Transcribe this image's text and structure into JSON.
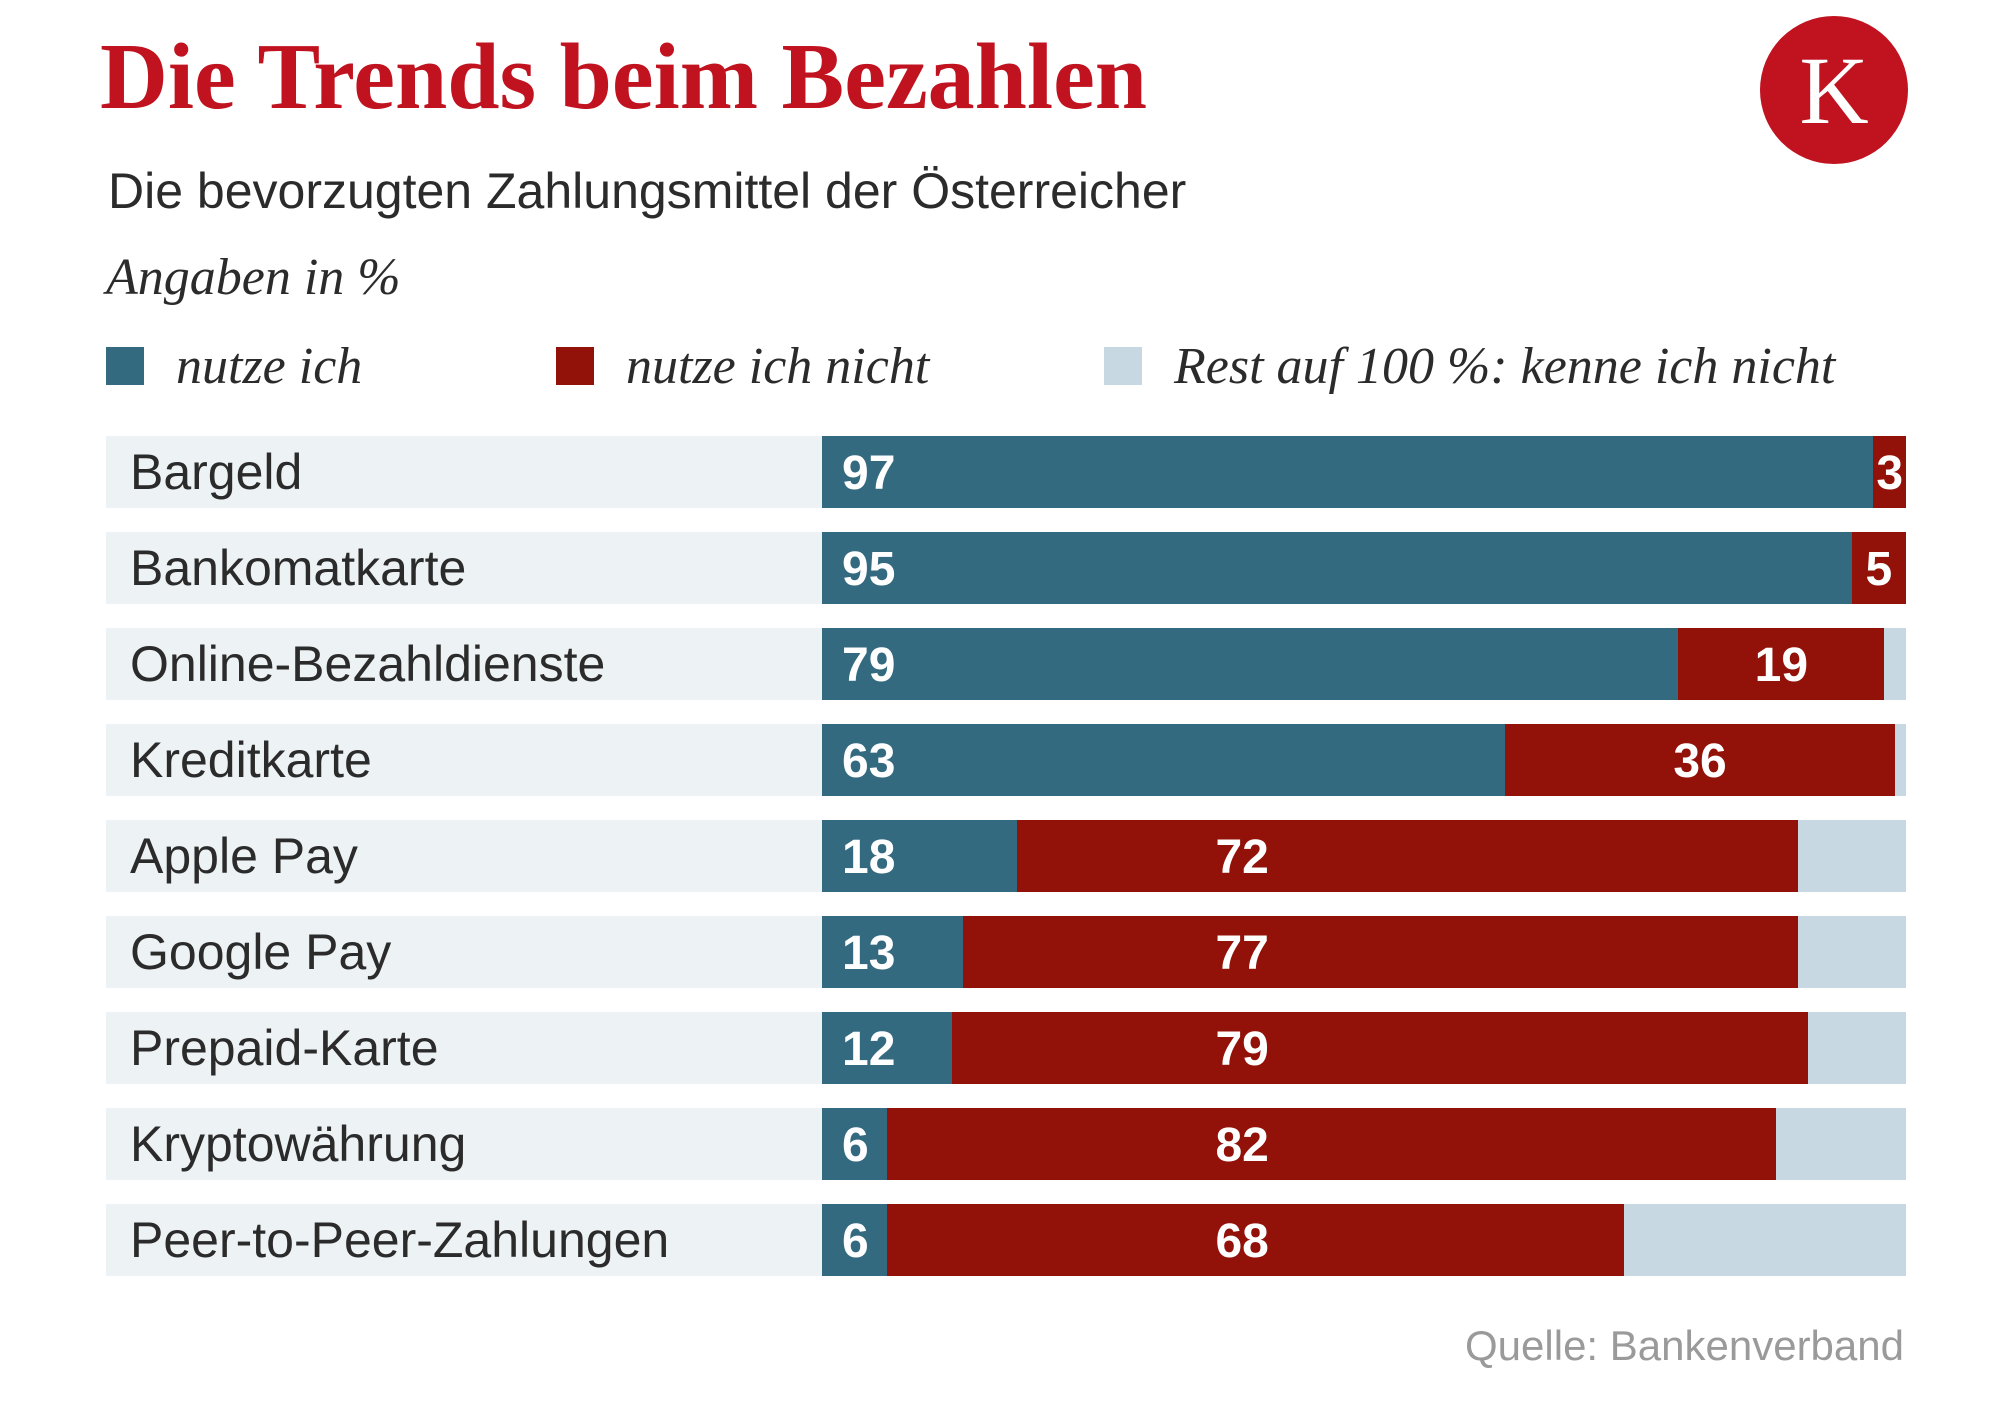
{
  "header": {
    "title": "Die Trends beim Bezahlen",
    "subtitle": "Die bevorzugten Zahlungsmittel der Österreicher",
    "unit": "Angaben in %",
    "logo_letter": "K"
  },
  "colors": {
    "use": "#336a80",
    "not_use": "#921108",
    "rest": "#c8d8e2",
    "row_bg": "#edf2f4",
    "title": "#c1121f"
  },
  "legend": [
    {
      "label": "nutze ich",
      "color": "#336a80"
    },
    {
      "label": "nutze ich nicht",
      "color": "#921108"
    },
    {
      "label": "Rest auf 100 %: kenne ich nicht",
      "color": "#c8d8e2"
    }
  ],
  "chart_data": {
    "type": "bar",
    "orientation": "horizontal",
    "stacked": true,
    "xlim": [
      0,
      100
    ],
    "categories": [
      "Bargeld",
      "Bankomatkarte",
      "Online-Bezahldienste",
      "Kreditkarte",
      "Apple Pay",
      "Google Pay",
      "Prepaid-Karte",
      "Kryptowährung",
      "Peer-to-Peer-Zahlungen"
    ],
    "series": [
      {
        "name": "nutze ich",
        "values": [
          97,
          95,
          79,
          63,
          18,
          13,
          12,
          6,
          6
        ]
      },
      {
        "name": "nutze ich nicht",
        "values": [
          3,
          5,
          19,
          36,
          72,
          77,
          79,
          82,
          68
        ]
      },
      {
        "name": "Rest auf 100 %: kenne ich nicht",
        "values": [
          0,
          0,
          2,
          1,
          10,
          10,
          9,
          12,
          26
        ]
      }
    ]
  },
  "source": "Quelle: Bankenverband"
}
